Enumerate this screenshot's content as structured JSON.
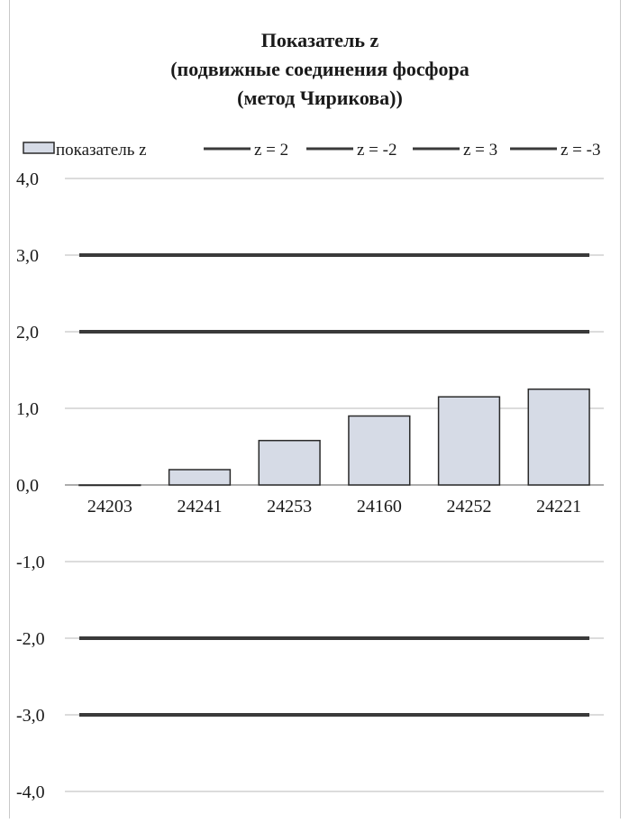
{
  "chart_data": {
    "type": "bar",
    "title_lines": [
      "Показатель z",
      "(подвижные соединения фосфора",
      "(метод Чирикова))"
    ],
    "categories": [
      "24203",
      "24241",
      "24253",
      "24160",
      "24252",
      "24221"
    ],
    "series": [
      {
        "name": "показатель z",
        "type": "bar",
        "values": [
          0.0,
          0.2,
          0.58,
          0.9,
          1.15,
          1.25
        ]
      }
    ],
    "reference_lines": [
      {
        "name": "z = 2",
        "value": 2
      },
      {
        "name": "z = -2",
        "value": -2
      },
      {
        "name": "z = 3",
        "value": 3
      },
      {
        "name": "z = -3",
        "value": -3
      }
    ],
    "y_ticks": [
      "4,0",
      "3,0",
      "2,0",
      "1,0",
      "0,0",
      "-1,0",
      "-2,0",
      "-3,0",
      "-4,0"
    ],
    "y_tick_values": [
      4,
      3,
      2,
      1,
      0,
      -1,
      -2,
      -3,
      -4
    ],
    "ylim": [
      -4,
      4
    ],
    "grid": true,
    "legend_position": "top",
    "colors": {
      "bar_fill": "#d6dbe6",
      "bar_stroke": "#2a2a2a",
      "ref_line": "#3a3a3a",
      "grid": "#b8b8b8",
      "text": "#1a1a1a"
    }
  }
}
